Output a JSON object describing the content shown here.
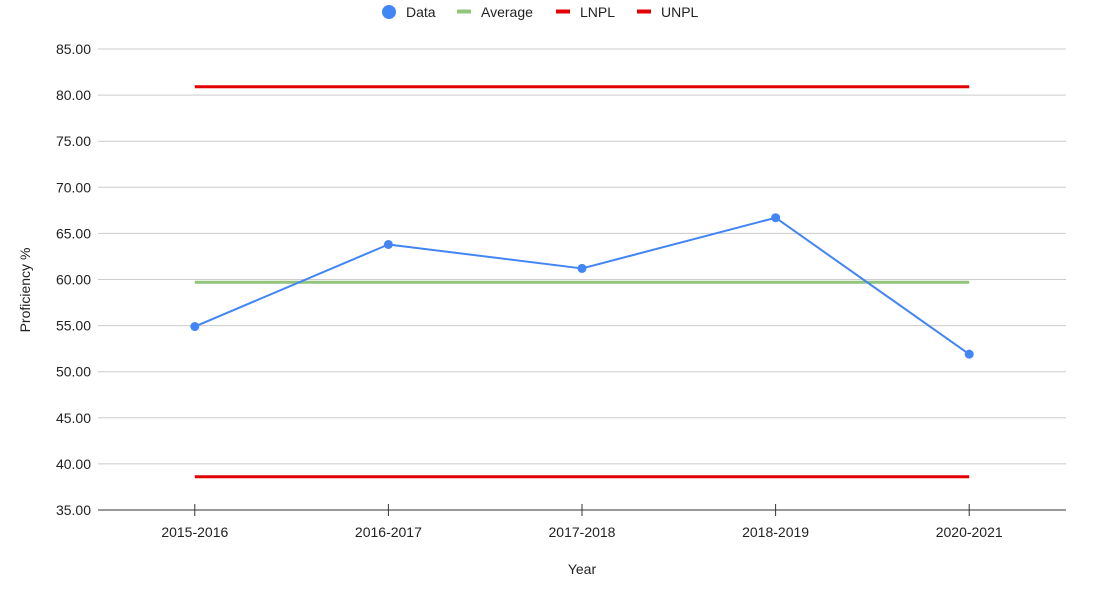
{
  "chart_data": {
    "type": "line",
    "title": "",
    "xlabel": "Year",
    "ylabel": "Proficiency %",
    "categories": [
      "2015-2016",
      "2016-2017",
      "2017-2018",
      "2018-2019",
      "2020-2021"
    ],
    "ylim": [
      35,
      85
    ],
    "yticks": [
      "35.00",
      "40.00",
      "45.00",
      "50.00",
      "55.00",
      "60.00",
      "65.00",
      "70.00",
      "75.00",
      "80.00",
      "85.00"
    ],
    "grid": true,
    "legend_position": "top",
    "series": [
      {
        "name": "Data",
        "values": [
          54.9,
          63.8,
          61.2,
          66.7,
          51.9
        ],
        "color": "#4285f4",
        "marker": "circle"
      },
      {
        "name": "Average",
        "values": [
          59.7,
          59.7,
          59.7,
          59.7,
          59.7
        ],
        "color": "#93c47d",
        "marker": "none"
      },
      {
        "name": "LNPL",
        "values": [
          38.6,
          38.6,
          38.6,
          38.6,
          38.6
        ],
        "color": "#e30000",
        "marker": "none"
      },
      {
        "name": "UNPL",
        "values": [
          80.9,
          80.9,
          80.9,
          80.9,
          80.9
        ],
        "color": "#e30000",
        "marker": "none"
      }
    ]
  }
}
